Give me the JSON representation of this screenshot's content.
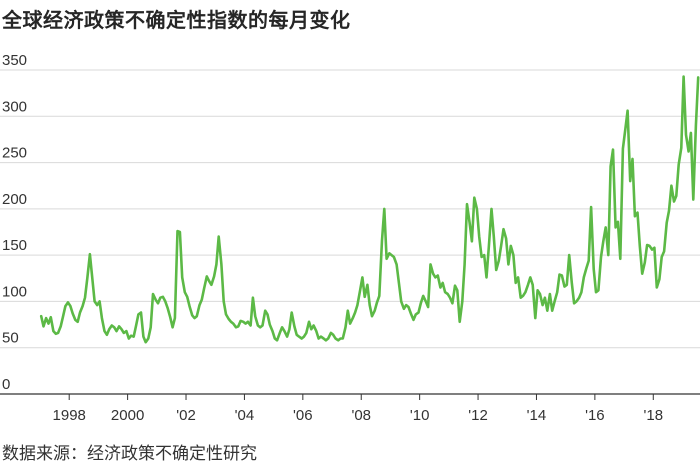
{
  "title": "全球经济政策不确定性指数的每月变化",
  "source": "数据来源：经济政策不确定性研究",
  "chart_data": {
    "type": "line",
    "title": "全球经济政策不确定性指数的每月变化",
    "xlabel": "",
    "ylabel": "",
    "ylim": [
      0,
      350
    ],
    "xlim": [
      1997.0,
      2019.6
    ],
    "y_ticks": [
      0,
      50,
      100,
      150,
      200,
      250,
      300,
      350
    ],
    "y_tick_labels": [
      "0",
      "50",
      "100",
      "150",
      "200",
      "250",
      "300",
      "350"
    ],
    "x_ticks": [
      1998,
      2000,
      2002,
      2004,
      2006,
      2008,
      2010,
      2012,
      2014,
      2016,
      2018
    ],
    "x_tick_labels": [
      "1998",
      "2000",
      "'02",
      "'04",
      "'06",
      "'08",
      "'10",
      "'12",
      "'14",
      "'16",
      "'18"
    ],
    "grid": true,
    "line_color": "#5cb946",
    "series": [
      {
        "points": [
          [
            1997.04,
            84
          ],
          [
            1997.12,
            73
          ],
          [
            1997.21,
            82
          ],
          [
            1997.29,
            76
          ],
          [
            1997.37,
            83
          ],
          [
            1997.46,
            68
          ],
          [
            1997.54,
            65
          ],
          [
            1997.62,
            66
          ],
          [
            1997.71,
            73
          ],
          [
            1997.79,
            84
          ],
          [
            1997.87,
            95
          ],
          [
            1997.96,
            99
          ],
          [
            1998.04,
            95
          ],
          [
            1998.12,
            87
          ],
          [
            1998.21,
            80
          ],
          [
            1998.29,
            78
          ],
          [
            1998.37,
            88
          ],
          [
            1998.46,
            95
          ],
          [
            1998.54,
            104
          ],
          [
            1998.62,
            125
          ],
          [
            1998.71,
            151
          ],
          [
            1998.79,
            125
          ],
          [
            1998.87,
            100
          ],
          [
            1998.96,
            96
          ],
          [
            1999.04,
            100
          ],
          [
            1999.12,
            82
          ],
          [
            1999.21,
            68
          ],
          [
            1999.29,
            64
          ],
          [
            1999.37,
            70
          ],
          [
            1999.46,
            74
          ],
          [
            1999.54,
            72
          ],
          [
            1999.62,
            68
          ],
          [
            1999.71,
            73
          ],
          [
            1999.79,
            70
          ],
          [
            1999.87,
            66
          ],
          [
            1999.96,
            68
          ],
          [
            2000.04,
            60
          ],
          [
            2000.12,
            63
          ],
          [
            2000.21,
            62
          ],
          [
            2000.29,
            74
          ],
          [
            2000.37,
            86
          ],
          [
            2000.46,
            88
          ],
          [
            2000.54,
            62
          ],
          [
            2000.62,
            56
          ],
          [
            2000.71,
            60
          ],
          [
            2000.79,
            72
          ],
          [
            2000.87,
            108
          ],
          [
            2000.96,
            102
          ],
          [
            2001.04,
            98
          ],
          [
            2001.12,
            104
          ],
          [
            2001.21,
            105
          ],
          [
            2001.29,
            100
          ],
          [
            2001.37,
            93
          ],
          [
            2001.46,
            83
          ],
          [
            2001.54,
            72
          ],
          [
            2001.62,
            82
          ],
          [
            2001.71,
            176
          ],
          [
            2001.79,
            175
          ],
          [
            2001.87,
            126
          ],
          [
            2001.96,
            110
          ],
          [
            2002.04,
            105
          ],
          [
            2002.12,
            95
          ],
          [
            2002.21,
            85
          ],
          [
            2002.29,
            82
          ],
          [
            2002.37,
            84
          ],
          [
            2002.46,
            96
          ],
          [
            2002.54,
            102
          ],
          [
            2002.62,
            114
          ],
          [
            2002.71,
            127
          ],
          [
            2002.79,
            122
          ],
          [
            2002.87,
            118
          ],
          [
            2002.96,
            127
          ],
          [
            2003.04,
            140
          ],
          [
            2003.12,
            170
          ],
          [
            2003.21,
            140
          ],
          [
            2003.29,
            100
          ],
          [
            2003.37,
            86
          ],
          [
            2003.46,
            81
          ],
          [
            2003.54,
            78
          ],
          [
            2003.62,
            76
          ],
          [
            2003.71,
            72
          ],
          [
            2003.79,
            73
          ],
          [
            2003.87,
            79
          ],
          [
            2003.96,
            78
          ],
          [
            2004.04,
            76
          ],
          [
            2004.12,
            78
          ],
          [
            2004.21,
            74
          ],
          [
            2004.29,
            104
          ],
          [
            2004.37,
            84
          ],
          [
            2004.46,
            74
          ],
          [
            2004.54,
            72
          ],
          [
            2004.62,
            74
          ],
          [
            2004.71,
            90
          ],
          [
            2004.79,
            86
          ],
          [
            2004.87,
            75
          ],
          [
            2004.96,
            68
          ],
          [
            2005.04,
            60
          ],
          [
            2005.12,
            58
          ],
          [
            2005.21,
            66
          ],
          [
            2005.29,
            72
          ],
          [
            2005.37,
            68
          ],
          [
            2005.46,
            62
          ],
          [
            2005.54,
            70
          ],
          [
            2005.62,
            88
          ],
          [
            2005.71,
            73
          ],
          [
            2005.79,
            64
          ],
          [
            2005.87,
            62
          ],
          [
            2005.96,
            60
          ],
          [
            2006.04,
            62
          ],
          [
            2006.12,
            66
          ],
          [
            2006.21,
            78
          ],
          [
            2006.29,
            70
          ],
          [
            2006.37,
            74
          ],
          [
            2006.46,
            68
          ],
          [
            2006.54,
            60
          ],
          [
            2006.62,
            62
          ],
          [
            2006.71,
            60
          ],
          [
            2006.79,
            58
          ],
          [
            2006.87,
            60
          ],
          [
            2006.96,
            66
          ],
          [
            2007.04,
            64
          ],
          [
            2007.12,
            60
          ],
          [
            2007.21,
            58
          ],
          [
            2007.29,
            60
          ],
          [
            2007.37,
            60
          ],
          [
            2007.46,
            72
          ],
          [
            2007.54,
            90
          ],
          [
            2007.62,
            76
          ],
          [
            2007.71,
            82
          ],
          [
            2007.79,
            88
          ],
          [
            2007.87,
            96
          ],
          [
            2007.96,
            112
          ],
          [
            2008.04,
            126
          ],
          [
            2008.12,
            105
          ],
          [
            2008.21,
            118
          ],
          [
            2008.29,
            96
          ],
          [
            2008.37,
            84
          ],
          [
            2008.46,
            90
          ],
          [
            2008.54,
            99
          ],
          [
            2008.62,
            106
          ],
          [
            2008.71,
            166
          ],
          [
            2008.79,
            200
          ],
          [
            2008.87,
            146
          ],
          [
            2008.96,
            152
          ],
          [
            2009.04,
            150
          ],
          [
            2009.12,
            148
          ],
          [
            2009.21,
            140
          ],
          [
            2009.29,
            120
          ],
          [
            2009.37,
            100
          ],
          [
            2009.46,
            92
          ],
          [
            2009.54,
            96
          ],
          [
            2009.62,
            94
          ],
          [
            2009.71,
            86
          ],
          [
            2009.79,
            80
          ],
          [
            2009.87,
            86
          ],
          [
            2009.96,
            88
          ],
          [
            2010.04,
            98
          ],
          [
            2010.12,
            106
          ],
          [
            2010.21,
            100
          ],
          [
            2010.29,
            94
          ],
          [
            2010.37,
            140
          ],
          [
            2010.46,
            130
          ],
          [
            2010.54,
            126
          ],
          [
            2010.62,
            128
          ],
          [
            2010.71,
            115
          ],
          [
            2010.79,
            120
          ],
          [
            2010.87,
            110
          ],
          [
            2010.96,
            108
          ],
          [
            2011.04,
            104
          ],
          [
            2011.12,
            98
          ],
          [
            2011.21,
            117
          ],
          [
            2011.29,
            112
          ],
          [
            2011.37,
            78
          ],
          [
            2011.46,
            100
          ],
          [
            2011.54,
            140
          ],
          [
            2011.62,
            205
          ],
          [
            2011.71,
            185
          ],
          [
            2011.79,
            165
          ],
          [
            2011.87,
            212
          ],
          [
            2011.96,
            200
          ],
          [
            2012.04,
            170
          ],
          [
            2012.12,
            148
          ],
          [
            2012.21,
            150
          ],
          [
            2012.29,
            126
          ],
          [
            2012.37,
            160
          ],
          [
            2012.46,
            200
          ],
          [
            2012.54,
            170
          ],
          [
            2012.62,
            134
          ],
          [
            2012.71,
            144
          ],
          [
            2012.79,
            160
          ],
          [
            2012.87,
            178
          ],
          [
            2012.96,
            168
          ],
          [
            2013.04,
            140
          ],
          [
            2013.12,
            160
          ],
          [
            2013.21,
            150
          ],
          [
            2013.29,
            120
          ],
          [
            2013.37,
            126
          ],
          [
            2013.46,
            104
          ],
          [
            2013.54,
            106
          ],
          [
            2013.62,
            110
          ],
          [
            2013.71,
            118
          ],
          [
            2013.79,
            126
          ],
          [
            2013.87,
            118
          ],
          [
            2013.96,
            82
          ],
          [
            2014.04,
            112
          ],
          [
            2014.12,
            108
          ],
          [
            2014.21,
            96
          ],
          [
            2014.29,
            104
          ],
          [
            2014.37,
            90
          ],
          [
            2014.46,
            108
          ],
          [
            2014.54,
            90
          ],
          [
            2014.62,
            100
          ],
          [
            2014.71,
            110
          ],
          [
            2014.79,
            129
          ],
          [
            2014.87,
            128
          ],
          [
            2014.96,
            116
          ],
          [
            2015.04,
            118
          ],
          [
            2015.12,
            150
          ],
          [
            2015.21,
            120
          ],
          [
            2015.29,
            98
          ],
          [
            2015.37,
            100
          ],
          [
            2015.46,
            104
          ],
          [
            2015.54,
            110
          ],
          [
            2015.62,
            126
          ],
          [
            2015.71,
            136
          ],
          [
            2015.79,
            144
          ],
          [
            2015.87,
            202
          ],
          [
            2015.96,
            135
          ],
          [
            2016.04,
            110
          ],
          [
            2016.12,
            112
          ],
          [
            2016.21,
            148
          ],
          [
            2016.29,
            165
          ],
          [
            2016.37,
            180
          ],
          [
            2016.46,
            150
          ],
          [
            2016.54,
            246
          ],
          [
            2016.62,
            264
          ],
          [
            2016.71,
            180
          ],
          [
            2016.79,
            186
          ],
          [
            2016.87,
            146
          ],
          [
            2016.96,
            265
          ],
          [
            2017.04,
            285
          ],
          [
            2017.12,
            306
          ],
          [
            2017.21,
            230
          ],
          [
            2017.29,
            254
          ],
          [
            2017.37,
            192
          ],
          [
            2017.46,
            196
          ],
          [
            2017.54,
            160
          ],
          [
            2017.62,
            130
          ],
          [
            2017.71,
            142
          ],
          [
            2017.79,
            161
          ],
          [
            2017.87,
            160
          ],
          [
            2017.96,
            156
          ],
          [
            2018.04,
            158
          ],
          [
            2018.12,
            115
          ],
          [
            2018.21,
            124
          ],
          [
            2018.29,
            148
          ],
          [
            2018.37,
            154
          ],
          [
            2018.46,
            185
          ],
          [
            2018.54,
            198
          ],
          [
            2018.62,
            225
          ],
          [
            2018.71,
            208
          ],
          [
            2018.79,
            214
          ],
          [
            2018.87,
            248
          ],
          [
            2018.96,
            266
          ],
          [
            2019.04,
            343
          ],
          [
            2019.12,
            280
          ],
          [
            2019.21,
            262
          ],
          [
            2019.29,
            282
          ],
          [
            2019.37,
            210
          ],
          [
            2019.46,
            290
          ],
          [
            2019.54,
            342
          ]
        ]
      }
    ]
  }
}
